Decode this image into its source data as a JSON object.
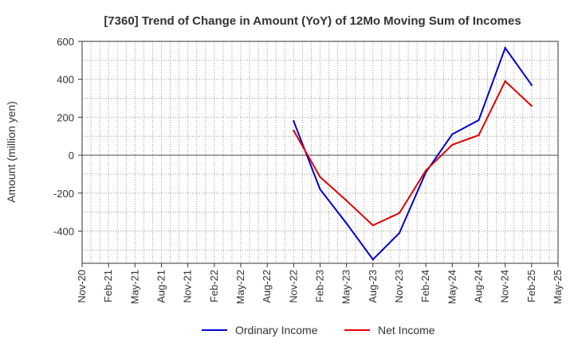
{
  "chart_data": {
    "type": "line",
    "title": "[7360]  Trend of Change in Amount (YoY) of 12Mo Moving Sum of Incomes",
    "ylabel": "Amount (million yen)",
    "xlabel": "",
    "ylim": [
      -570,
      600
    ],
    "yticks": [
      600,
      400,
      200,
      0,
      -200,
      -400
    ],
    "x_tick_labels": [
      "Nov-20",
      "Feb-21",
      "May-21",
      "Aug-21",
      "Nov-21",
      "Feb-22",
      "May-22",
      "Aug-22",
      "Nov-22",
      "Feb-23",
      "May-23",
      "Aug-23",
      "Nov-23",
      "Feb-24",
      "May-24",
      "Aug-24",
      "Nov-24",
      "Feb-25",
      "May-25"
    ],
    "grid": true,
    "legend_position": "bottom",
    "series": [
      {
        "name": "Ordinary Income",
        "color": "#0000cc",
        "points": [
          {
            "x": "Nov-22",
            "y": 180
          },
          {
            "x": "Feb-23",
            "y": -180
          },
          {
            "x": "May-23",
            "y": -360
          },
          {
            "x": "Aug-23",
            "y": -550
          },
          {
            "x": "Nov-23",
            "y": -410
          },
          {
            "x": "Feb-24",
            "y": -90
          },
          {
            "x": "May-24",
            "y": 110
          },
          {
            "x": "Aug-24",
            "y": 185
          },
          {
            "x": "Nov-24",
            "y": 565
          },
          {
            "x": "Feb-25",
            "y": 370
          }
        ]
      },
      {
        "name": "Net Income",
        "color": "#e00000",
        "points": [
          {
            "x": "Nov-22",
            "y": 130
          },
          {
            "x": "Feb-23",
            "y": -115
          },
          {
            "x": "May-23",
            "y": -240
          },
          {
            "x": "Aug-23",
            "y": -370
          },
          {
            "x": "Nov-23",
            "y": -305
          },
          {
            "x": "Feb-24",
            "y": -80
          },
          {
            "x": "May-24",
            "y": 55
          },
          {
            "x": "Aug-24",
            "y": 105
          },
          {
            "x": "Nov-24",
            "y": 390
          },
          {
            "x": "Feb-25",
            "y": 260
          }
        ]
      }
    ]
  }
}
